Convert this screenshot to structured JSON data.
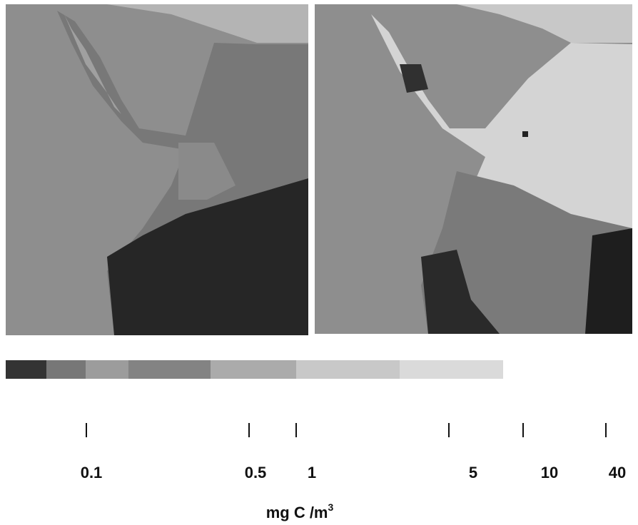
{
  "colorbar": {
    "ticks": [
      "0.1",
      "0.5",
      "1",
      "5",
      "10",
      "40"
    ],
    "unit_label": "mg C /m",
    "unit_superscript": "3"
  }
}
